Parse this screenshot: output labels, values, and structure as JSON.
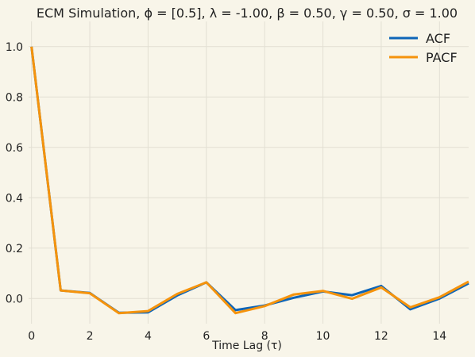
{
  "chart_data": {
    "type": "line",
    "title": "ECM Simulation, ϕ = [0.5], λ = -1.00, β = 0.50, γ = 0.50, σ = 1.00",
    "xlabel": "Time Lag (τ)",
    "ylabel": "",
    "xlim": [
      -0.1,
      15
    ],
    "ylim": [
      -0.1,
      1.1
    ],
    "xticks": [
      0,
      2,
      4,
      6,
      8,
      10,
      12,
      14
    ],
    "yticks": [
      0.0,
      0.2,
      0.4,
      0.6,
      0.8,
      1.0
    ],
    "ytick_labels": [
      "0.0",
      "0.2",
      "0.4",
      "0.6",
      "0.8",
      "1.0"
    ],
    "grid": true,
    "legend_position": "top-right",
    "x": [
      0,
      1,
      2,
      3,
      4,
      5,
      6,
      7,
      8,
      9,
      10,
      11,
      12,
      13,
      14,
      15
    ],
    "series": [
      {
        "name": "ACF",
        "color": "#0e65b8",
        "values": [
          1.0,
          0.032,
          0.022,
          -0.057,
          -0.055,
          0.012,
          0.064,
          -0.046,
          -0.028,
          0.003,
          0.028,
          0.013,
          0.05,
          -0.043,
          0.0,
          0.06
        ]
      },
      {
        "name": "PACF",
        "color": "#f5930c",
        "values": [
          1.0,
          0.032,
          0.021,
          -0.058,
          -0.05,
          0.018,
          0.064,
          -0.058,
          -0.03,
          0.016,
          0.03,
          -0.001,
          0.044,
          -0.035,
          0.005,
          0.067
        ]
      }
    ]
  }
}
